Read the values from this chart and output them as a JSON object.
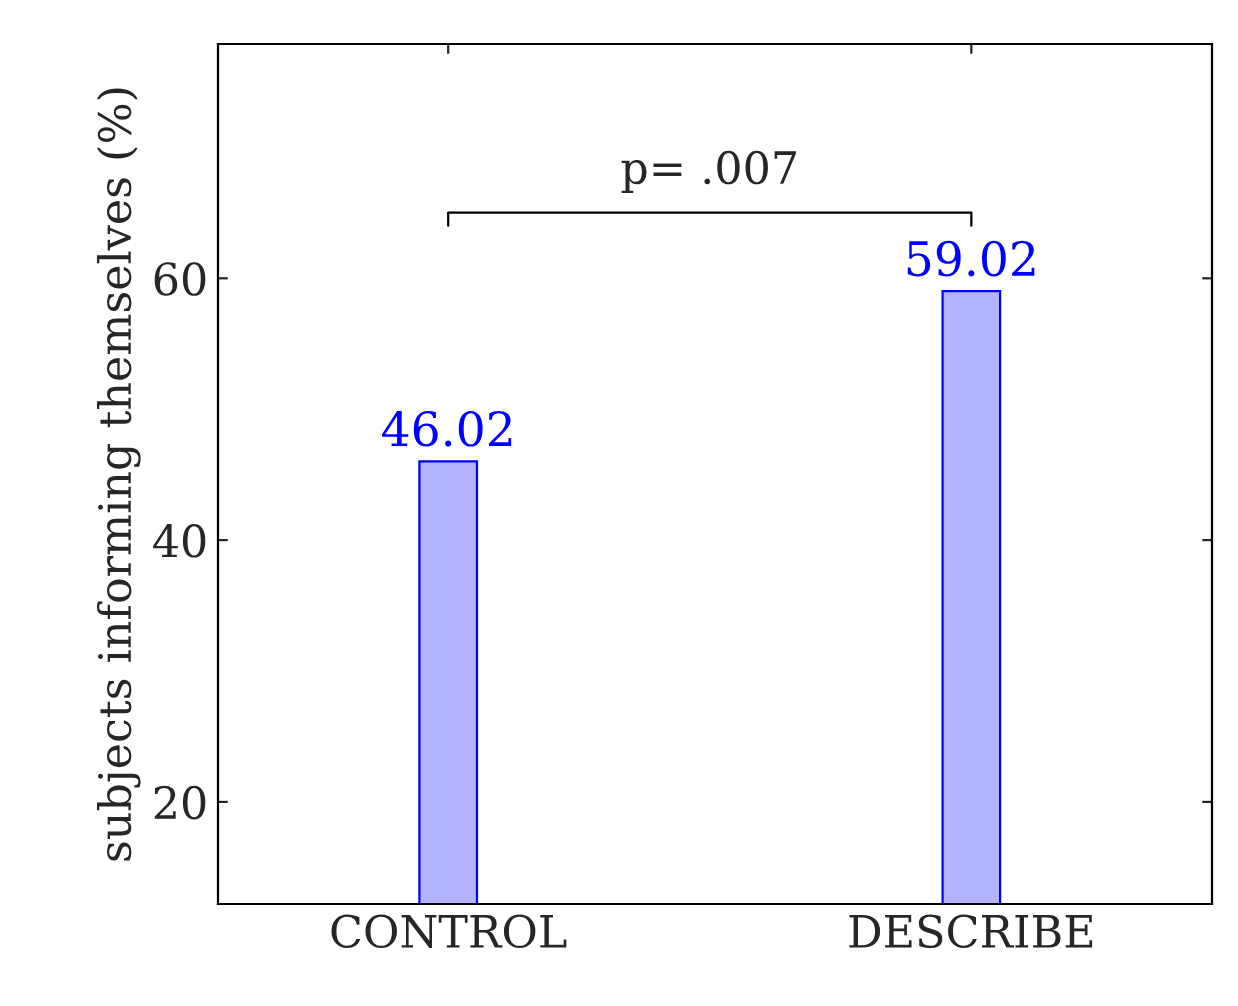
{
  "chart_data": {
    "type": "bar",
    "ylabel": "subjects informing themselves (%)",
    "categories": [
      "CONTROL",
      "DESCRIBE"
    ],
    "series": [
      {
        "color": "#b3b3ff",
        "values": [
          46.02,
          59.02
        ]
      }
    ],
    "data_labels": true,
    "ylim": [
      12.2,
      77.9
    ],
    "yticks": [
      20,
      40,
      60
    ],
    "annotations": [
      "p= .007"
    ],
    "grid": false,
    "legend": false
  }
}
